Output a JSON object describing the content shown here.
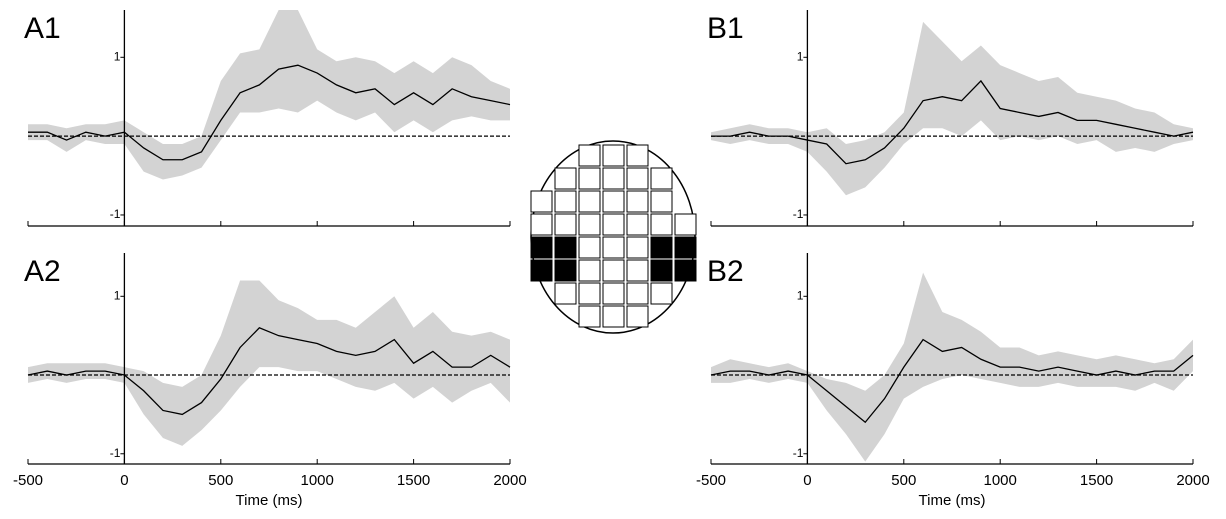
{
  "chart_data": [
    {
      "type": "line",
      "title": "A1",
      "x": [
        -500,
        -400,
        -300,
        -200,
        -100,
        0,
        100,
        200,
        300,
        400,
        500,
        600,
        700,
        800,
        900,
        1000,
        1100,
        1200,
        1300,
        1400,
        1500,
        1600,
        1700,
        1800,
        1900,
        2000
      ],
      "values": [
        0.05,
        0.05,
        -0.05,
        0.05,
        0,
        0.05,
        -0.15,
        -0.3,
        -0.3,
        -0.2,
        0.2,
        0.55,
        0.65,
        0.85,
        0.9,
        0.8,
        0.65,
        0.55,
        0.6,
        0.4,
        0.55,
        0.4,
        0.6,
        0.5,
        0.45,
        0.4
      ],
      "band_upper": [
        0.15,
        0.15,
        0.1,
        0.15,
        0.15,
        0.2,
        0.05,
        -0.1,
        -0.1,
        0.0,
        0.7,
        1.05,
        1.1,
        1.6,
        1.6,
        1.1,
        0.95,
        1.0,
        0.95,
        0.8,
        0.95,
        0.8,
        1.0,
        0.9,
        0.7,
        0.6
      ],
      "band_lower": [
        -0.05,
        -0.05,
        -0.2,
        -0.05,
        -0.1,
        -0.1,
        -0.45,
        -0.55,
        -0.5,
        -0.4,
        -0.05,
        0.3,
        0.3,
        0.35,
        0.3,
        0.45,
        0.3,
        0.2,
        0.3,
        0.05,
        0.2,
        0.05,
        0.2,
        0.25,
        0.2,
        0.2
      ],
      "color": "#000000",
      "band_color": "#d3d3d3",
      "xlim": [
        -500,
        2000
      ],
      "xticks": [
        -500,
        0,
        500,
        1000,
        1500,
        2000
      ],
      "xtick_labels": false,
      "ylim": [
        -1.14,
        1.6
      ],
      "yticks": [
        -1,
        1
      ],
      "hline": 0
    },
    {
      "type": "line",
      "title": "A2",
      "xlabel": "Time (ms)",
      "x": [
        -500,
        -400,
        -300,
        -200,
        -100,
        0,
        100,
        200,
        300,
        400,
        500,
        600,
        700,
        800,
        900,
        1000,
        1100,
        1200,
        1300,
        1400,
        1500,
        1600,
        1700,
        1800,
        1900,
        2000
      ],
      "values": [
        0.0,
        0.05,
        0.0,
        0.05,
        0.05,
        0.0,
        -0.2,
        -0.45,
        -0.5,
        -0.35,
        -0.05,
        0.35,
        0.6,
        0.5,
        0.45,
        0.4,
        0.3,
        0.25,
        0.3,
        0.45,
        0.15,
        0.3,
        0.1,
        0.1,
        0.25,
        0.1
      ],
      "band_upper": [
        0.1,
        0.15,
        0.15,
        0.15,
        0.15,
        0.1,
        0.05,
        -0.1,
        -0.15,
        0.0,
        0.5,
        1.2,
        1.2,
        0.95,
        0.85,
        0.7,
        0.7,
        0.6,
        0.8,
        1.0,
        0.6,
        0.8,
        0.55,
        0.5,
        0.55,
        0.45
      ],
      "band_lower": [
        -0.1,
        -0.05,
        -0.1,
        -0.05,
        -0.05,
        -0.1,
        -0.5,
        -0.8,
        -0.9,
        -0.7,
        -0.45,
        -0.15,
        0.1,
        0.1,
        0.05,
        0.05,
        -0.05,
        -0.15,
        -0.2,
        -0.1,
        -0.3,
        -0.15,
        -0.35,
        -0.2,
        -0.1,
        -0.35
      ],
      "color": "#000000",
      "band_color": "#d3d3d3",
      "xlim": [
        -500,
        2000
      ],
      "xticks": [
        -500,
        0,
        500,
        1000,
        1500,
        2000
      ],
      "xtick_labels": true,
      "ylim": [
        -1.13,
        1.55
      ],
      "yticks": [
        -1,
        1
      ],
      "hline": 0
    },
    {
      "type": "line",
      "title": "B1",
      "x": [
        -500,
        -400,
        -300,
        -200,
        -100,
        0,
        100,
        200,
        300,
        400,
        500,
        600,
        700,
        800,
        900,
        1000,
        1100,
        1200,
        1300,
        1400,
        1500,
        1600,
        1700,
        1800,
        1900,
        2000
      ],
      "values": [
        0,
        0,
        0.05,
        0,
        0,
        -0.05,
        -0.1,
        -0.35,
        -0.3,
        -0.15,
        0.1,
        0.45,
        0.5,
        0.45,
        0.7,
        0.35,
        0.3,
        0.25,
        0.3,
        0.2,
        0.2,
        0.15,
        0.1,
        0.05,
        0,
        0.05
      ],
      "band_upper": [
        0.05,
        0.1,
        0.15,
        0.1,
        0.1,
        0.05,
        0.1,
        -0.1,
        -0.05,
        0.05,
        0.3,
        1.45,
        1.2,
        0.95,
        1.15,
        0.9,
        0.8,
        0.7,
        0.75,
        0.55,
        0.5,
        0.45,
        0.35,
        0.3,
        0.15,
        0.1
      ],
      "band_lower": [
        -0.05,
        -0.1,
        -0.05,
        -0.1,
        -0.1,
        -0.2,
        -0.45,
        -0.75,
        -0.65,
        -0.4,
        -0.1,
        0.1,
        0.1,
        0.0,
        0.2,
        -0.05,
        0.0,
        -0.05,
        0.0,
        -0.1,
        -0.05,
        -0.2,
        -0.15,
        -0.2,
        -0.1,
        -0.05
      ],
      "color": "#000000",
      "band_color": "#d3d3d3",
      "xlim": [
        -500,
        2000
      ],
      "xticks": [
        -500,
        0,
        500,
        1000,
        1500,
        2000
      ],
      "xtick_labels": false,
      "ylim": [
        -1.14,
        1.6
      ],
      "yticks": [
        -1,
        1
      ],
      "hline": 0
    },
    {
      "type": "line",
      "title": "B2",
      "xlabel": "Time (ms)",
      "x": [
        -500,
        -400,
        -300,
        -200,
        -100,
        0,
        100,
        200,
        300,
        400,
        500,
        600,
        700,
        800,
        900,
        1000,
        1100,
        1200,
        1300,
        1400,
        1500,
        1600,
        1700,
        1800,
        1900,
        2000
      ],
      "values": [
        0,
        0.05,
        0.05,
        0,
        0.05,
        0,
        -0.2,
        -0.4,
        -0.6,
        -0.3,
        0.1,
        0.45,
        0.3,
        0.35,
        0.2,
        0.1,
        0.1,
        0.05,
        0.1,
        0.05,
        0,
        0.05,
        0,
        0.05,
        0.05,
        0.25
      ],
      "band_upper": [
        0.1,
        0.2,
        0.15,
        0.1,
        0.15,
        0.05,
        -0.05,
        -0.1,
        -0.2,
        0.0,
        0.4,
        1.3,
        0.8,
        0.7,
        0.55,
        0.35,
        0.35,
        0.25,
        0.3,
        0.25,
        0.2,
        0.25,
        0.2,
        0.15,
        0.2,
        0.45
      ],
      "band_lower": [
        -0.1,
        -0.1,
        -0.05,
        -0.1,
        -0.05,
        -0.1,
        -0.45,
        -0.75,
        -1.1,
        -0.75,
        -0.3,
        -0.15,
        -0.05,
        0.0,
        -0.05,
        -0.1,
        -0.15,
        -0.15,
        -0.1,
        -0.15,
        -0.15,
        -0.15,
        -0.2,
        -0.1,
        -0.2,
        0.05
      ],
      "color": "#000000",
      "band_color": "#d3d3d3",
      "xlim": [
        -500,
        2000
      ],
      "xticks": [
        -500,
        0,
        500,
        1000,
        1500,
        2000
      ],
      "xtick_labels": true,
      "ylim": [
        -1.13,
        1.55
      ],
      "yticks": [
        -1,
        1
      ],
      "hline": 0
    }
  ]
}
